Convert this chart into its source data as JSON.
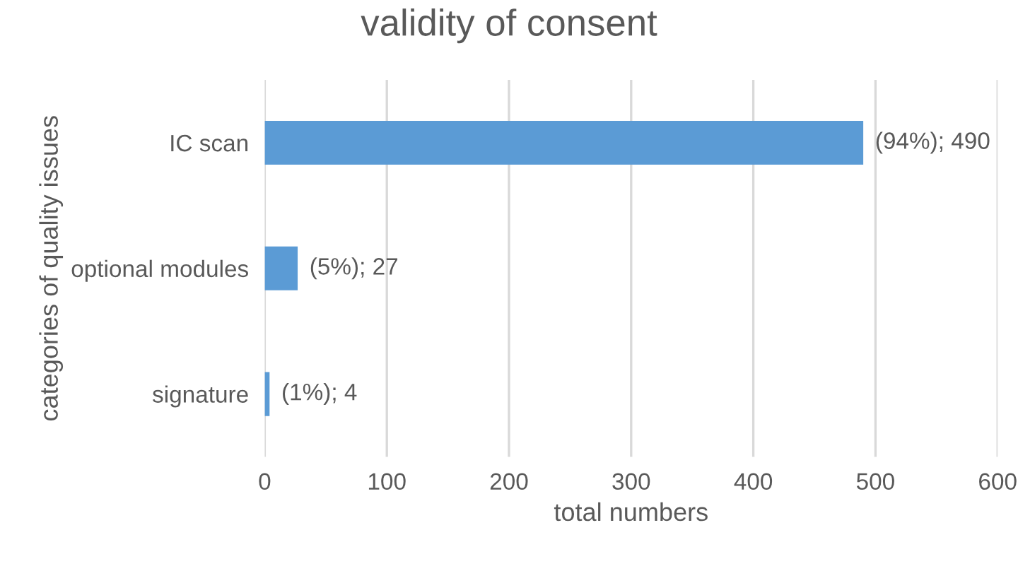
{
  "chart_data": {
    "type": "bar",
    "orientation": "horizontal",
    "title": "validity of consent",
    "xlabel": "total numbers",
    "ylabel": "categories of quality issues",
    "categories": [
      "IC scan",
      "optional modules",
      "signature"
    ],
    "values": [
      490,
      27,
      4
    ],
    "value_labels": [
      "(94%); 490",
      "(5%); 27",
      "(1%); 4"
    ],
    "color": "#5b9bd5",
    "xlim": [
      0,
      600
    ],
    "xticks": [
      0,
      100,
      200,
      300,
      400,
      500,
      600
    ],
    "grid": "x"
  }
}
